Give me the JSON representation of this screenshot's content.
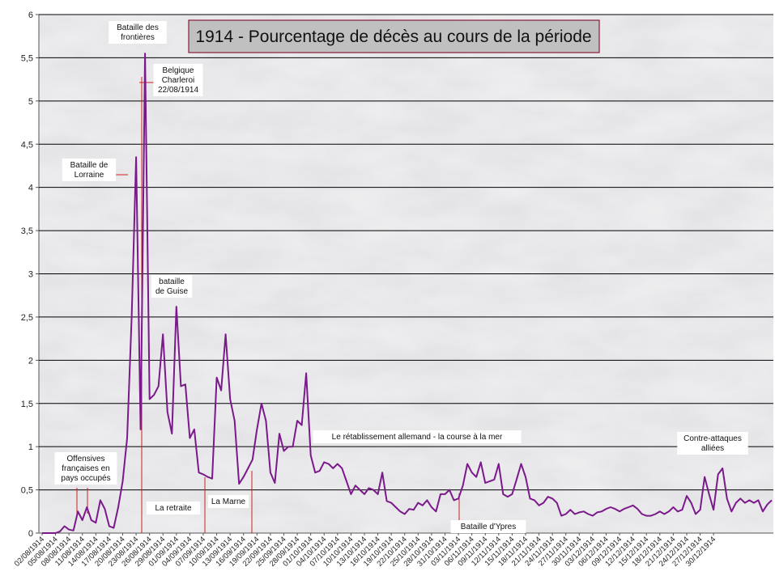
{
  "chart_data": {
    "type": "line",
    "title": "1914 - Pourcentage de décès au cours de la période",
    "xlabel": "",
    "ylabel": "",
    "ylim": [
      0,
      6
    ],
    "y_ticks": [
      "0",
      "0,5",
      "1",
      "1,5",
      "2",
      "2,5",
      "3",
      "3,5",
      "4",
      "4,5",
      "5",
      "5,5",
      "6"
    ],
    "grid": true,
    "series_color": "#7a1a8a",
    "x_tick_labels": [
      "02/08/1914",
      "05/08/1914",
      "08/08/1914",
      "11/08/1914",
      "14/08/1914",
      "17/08/1914",
      "20/08/1914",
      "23/08/1914",
      "26/08/1914",
      "29/08/1914",
      "01/09/1914",
      "04/09/1914",
      "07/09/1914",
      "10/09/1914",
      "13/09/1914",
      "16/09/1914",
      "19/09/1914",
      "22/09/1914",
      "25/09/1914",
      "28/09/1914",
      "01/10/1914",
      "04/10/1914",
      "07/10/1914",
      "10/10/1914",
      "13/10/1914",
      "16/10/1914",
      "19/10/1914",
      "22/10/1914",
      "25/10/1914",
      "28/10/1914",
      "31/10/1914",
      "03/11/1914",
      "06/11/1914",
      "09/11/1914",
      "12/11/1914",
      "15/11/1914",
      "18/11/1914",
      "21/11/1914",
      "24/11/1914",
      "27/11/1914",
      "30/11/1914",
      "03/12/1914",
      "06/12/1914",
      "09/12/1914",
      "12/12/1914",
      "15/12/1914",
      "18/12/1914",
      "21/12/1914",
      "24/12/1914",
      "27/12/1914",
      "30/12/1914"
    ],
    "series": [
      {
        "x_start": "02/08/1914",
        "x_end": "31/12/1914",
        "values": [
          0,
          0,
          0,
          0,
          0.02,
          0.08,
          0.04,
          0.03,
          0.25,
          0.15,
          0.3,
          0.15,
          0.12,
          0.38,
          0.28,
          0.08,
          0.06,
          0.3,
          0.6,
          1.1,
          2.5,
          4.35,
          1.2,
          5.55,
          1.55,
          1.6,
          1.7,
          2.3,
          1.4,
          1.15,
          2.62,
          1.7,
          1.72,
          1.1,
          1.2,
          0.7,
          0.68,
          0.65,
          0.63,
          1.8,
          1.65,
          2.3,
          1.55,
          1.3,
          0.57,
          0.65,
          0.75,
          0.85,
          1.2,
          1.5,
          1.3,
          0.7,
          0.58,
          1.15,
          0.95,
          1.0,
          1.0,
          1.3,
          1.25,
          1.85,
          0.9,
          0.7,
          0.72,
          0.82,
          0.8,
          0.75,
          0.8,
          0.75,
          0.6,
          0.45,
          0.55,
          0.5,
          0.45,
          0.52,
          0.5,
          0.45,
          0.7,
          0.37,
          0.35,
          0.3,
          0.25,
          0.22,
          0.28,
          0.27,
          0.35,
          0.32,
          0.38,
          0.3,
          0.25,
          0.45,
          0.45,
          0.5,
          0.38,
          0.4,
          0.55,
          0.8,
          0.7,
          0.65,
          0.82,
          0.58,
          0.6,
          0.62,
          0.8,
          0.45,
          0.42,
          0.45,
          0.62,
          0.8,
          0.65,
          0.4,
          0.38,
          0.32,
          0.35,
          0.42,
          0.4,
          0.35,
          0.2,
          0.22,
          0.27,
          0.22,
          0.24,
          0.25,
          0.22,
          0.2,
          0.24,
          0.25,
          0.28,
          0.3,
          0.28,
          0.25,
          0.28,
          0.3,
          0.32,
          0.28,
          0.22,
          0.2,
          0.2,
          0.22,
          0.25,
          0.22,
          0.25,
          0.3,
          0.25,
          0.27,
          0.43,
          0.35,
          0.22,
          0.27,
          0.65,
          0.45,
          0.27,
          0.68,
          0.75,
          0.4,
          0.25,
          0.35,
          0.4,
          0.35,
          0.38,
          0.35,
          0.38,
          0.25,
          0.33,
          0.38
        ]
      }
    ],
    "annotations": [
      {
        "lines": [
          "Bataille des",
          "frontières"
        ]
      },
      {
        "lines": [
          "Belgique",
          "Charleroi",
          "22/08/1914"
        ]
      },
      {
        "lines": [
          "Bataille de",
          "Lorraine"
        ]
      },
      {
        "lines": [
          "bataille",
          "de Guise"
        ]
      },
      {
        "lines": [
          "Offensives",
          "françaises en",
          "pays occupés"
        ]
      },
      {
        "lines": [
          "La retraite"
        ]
      },
      {
        "lines": [
          "La Marne"
        ]
      },
      {
        "lines": [
          "Le rétablissement allemand - la course à la mer"
        ]
      },
      {
        "lines": [
          "Bataille d'Ypres"
        ]
      },
      {
        "lines": [
          "Contre-attaques",
          "alliées"
        ]
      }
    ]
  }
}
